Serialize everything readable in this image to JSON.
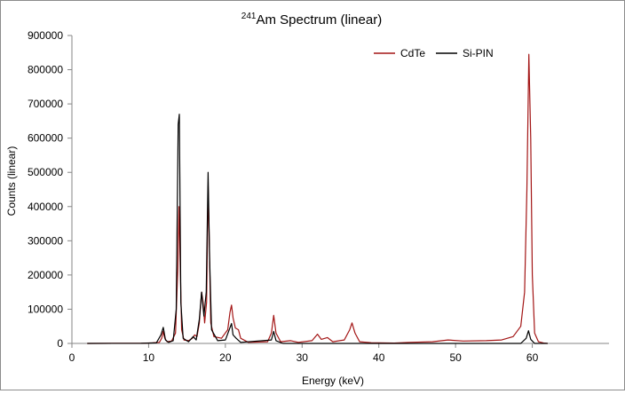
{
  "chart_data": {
    "type": "line",
    "title_superscript": "241",
    "title_main": "Am Spectrum (linear)",
    "xlabel": "Energy (keV)",
    "ylabel": "Counts (linear)",
    "xlim": [
      0,
      70
    ],
    "ylim": [
      0,
      900000
    ],
    "x_ticks": [
      0,
      10,
      20,
      30,
      40,
      50,
      60
    ],
    "y_ticks": [
      0,
      100000,
      200000,
      300000,
      400000,
      500000,
      600000,
      700000,
      800000,
      900000
    ],
    "grid": false,
    "legend_position": "top-right",
    "series": [
      {
        "name": "CdTe",
        "color": "#a31515",
        "points": [
          [
            2,
            0
          ],
          [
            9,
            500
          ],
          [
            10.5,
            1500
          ],
          [
            11.4,
            3000
          ],
          [
            11.7,
            15000
          ],
          [
            11.9,
            35000
          ],
          [
            12.1,
            15000
          ],
          [
            12.4,
            5000
          ],
          [
            13.0,
            7000
          ],
          [
            13.5,
            30000
          ],
          [
            13.8,
            220000
          ],
          [
            13.95,
            400000
          ],
          [
            14.1,
            240000
          ],
          [
            14.3,
            40000
          ],
          [
            14.6,
            10000
          ],
          [
            15.2,
            8000
          ],
          [
            15.7,
            15000
          ],
          [
            16.0,
            25000
          ],
          [
            16.3,
            20000
          ],
          [
            16.6,
            60000
          ],
          [
            16.9,
            150000
          ],
          [
            17.1,
            120000
          ],
          [
            17.3,
            60000
          ],
          [
            17.55,
            120000
          ],
          [
            17.75,
            460000
          ],
          [
            17.9,
            300000
          ],
          [
            18.1,
            60000
          ],
          [
            18.5,
            20000
          ],
          [
            19.5,
            15000
          ],
          [
            20.3,
            40000
          ],
          [
            20.6,
            90000
          ],
          [
            20.8,
            112000
          ],
          [
            21.0,
            75000
          ],
          [
            21.3,
            45000
          ],
          [
            21.7,
            40000
          ],
          [
            22.0,
            15000
          ],
          [
            23,
            3000
          ],
          [
            25.5,
            5000
          ],
          [
            26.0,
            30000
          ],
          [
            26.3,
            82000
          ],
          [
            26.6,
            30000
          ],
          [
            27.2,
            5000
          ],
          [
            28.5,
            8000
          ],
          [
            29.5,
            3000
          ],
          [
            31.3,
            8000
          ],
          [
            32.0,
            27000
          ],
          [
            32.5,
            12000
          ],
          [
            33.3,
            17000
          ],
          [
            34.0,
            5000
          ],
          [
            35.5,
            10000
          ],
          [
            36.2,
            40000
          ],
          [
            36.5,
            60000
          ],
          [
            36.9,
            30000
          ],
          [
            37.5,
            5000
          ],
          [
            39,
            2000
          ],
          [
            42,
            1000
          ],
          [
            44,
            3000
          ],
          [
            47,
            5000
          ],
          [
            49,
            10000
          ],
          [
            51,
            7000
          ],
          [
            54,
            8000
          ],
          [
            56,
            10000
          ],
          [
            57.5,
            20000
          ],
          [
            58.5,
            50000
          ],
          [
            59.0,
            150000
          ],
          [
            59.3,
            450000
          ],
          [
            59.55,
            845000
          ],
          [
            59.8,
            600000
          ],
          [
            60.0,
            200000
          ],
          [
            60.3,
            30000
          ],
          [
            60.8,
            5000
          ],
          [
            61.5,
            1000
          ],
          [
            62,
            0
          ]
        ]
      },
      {
        "name": "Si-PIN",
        "color": "#000000",
        "points": [
          [
            2,
            0
          ],
          [
            9,
            300
          ],
          [
            11.0,
            1500
          ],
          [
            11.6,
            25000
          ],
          [
            11.9,
            47000
          ],
          [
            12.2,
            10000
          ],
          [
            12.6,
            3000
          ],
          [
            13.2,
            8000
          ],
          [
            13.6,
            100000
          ],
          [
            13.85,
            640000
          ],
          [
            14.0,
            670000
          ],
          [
            14.2,
            120000
          ],
          [
            14.5,
            15000
          ],
          [
            15.2,
            5000
          ],
          [
            15.8,
            20000
          ],
          [
            16.2,
            10000
          ],
          [
            16.6,
            70000
          ],
          [
            16.9,
            150000
          ],
          [
            17.2,
            80000
          ],
          [
            17.5,
            150000
          ],
          [
            17.75,
            500000
          ],
          [
            17.95,
            250000
          ],
          [
            18.2,
            40000
          ],
          [
            19.0,
            8000
          ],
          [
            20.0,
            10000
          ],
          [
            20.5,
            40000
          ],
          [
            20.8,
            58000
          ],
          [
            21.0,
            25000
          ],
          [
            21.4,
            15000
          ],
          [
            22.0,
            3000
          ],
          [
            26.0,
            10000
          ],
          [
            26.3,
            35000
          ],
          [
            26.6,
            8000
          ],
          [
            27.5,
            0
          ],
          [
            58.5,
            0
          ],
          [
            59.2,
            15000
          ],
          [
            59.5,
            37000
          ],
          [
            59.8,
            12000
          ],
          [
            60.3,
            0
          ],
          [
            62,
            0
          ]
        ]
      }
    ]
  }
}
